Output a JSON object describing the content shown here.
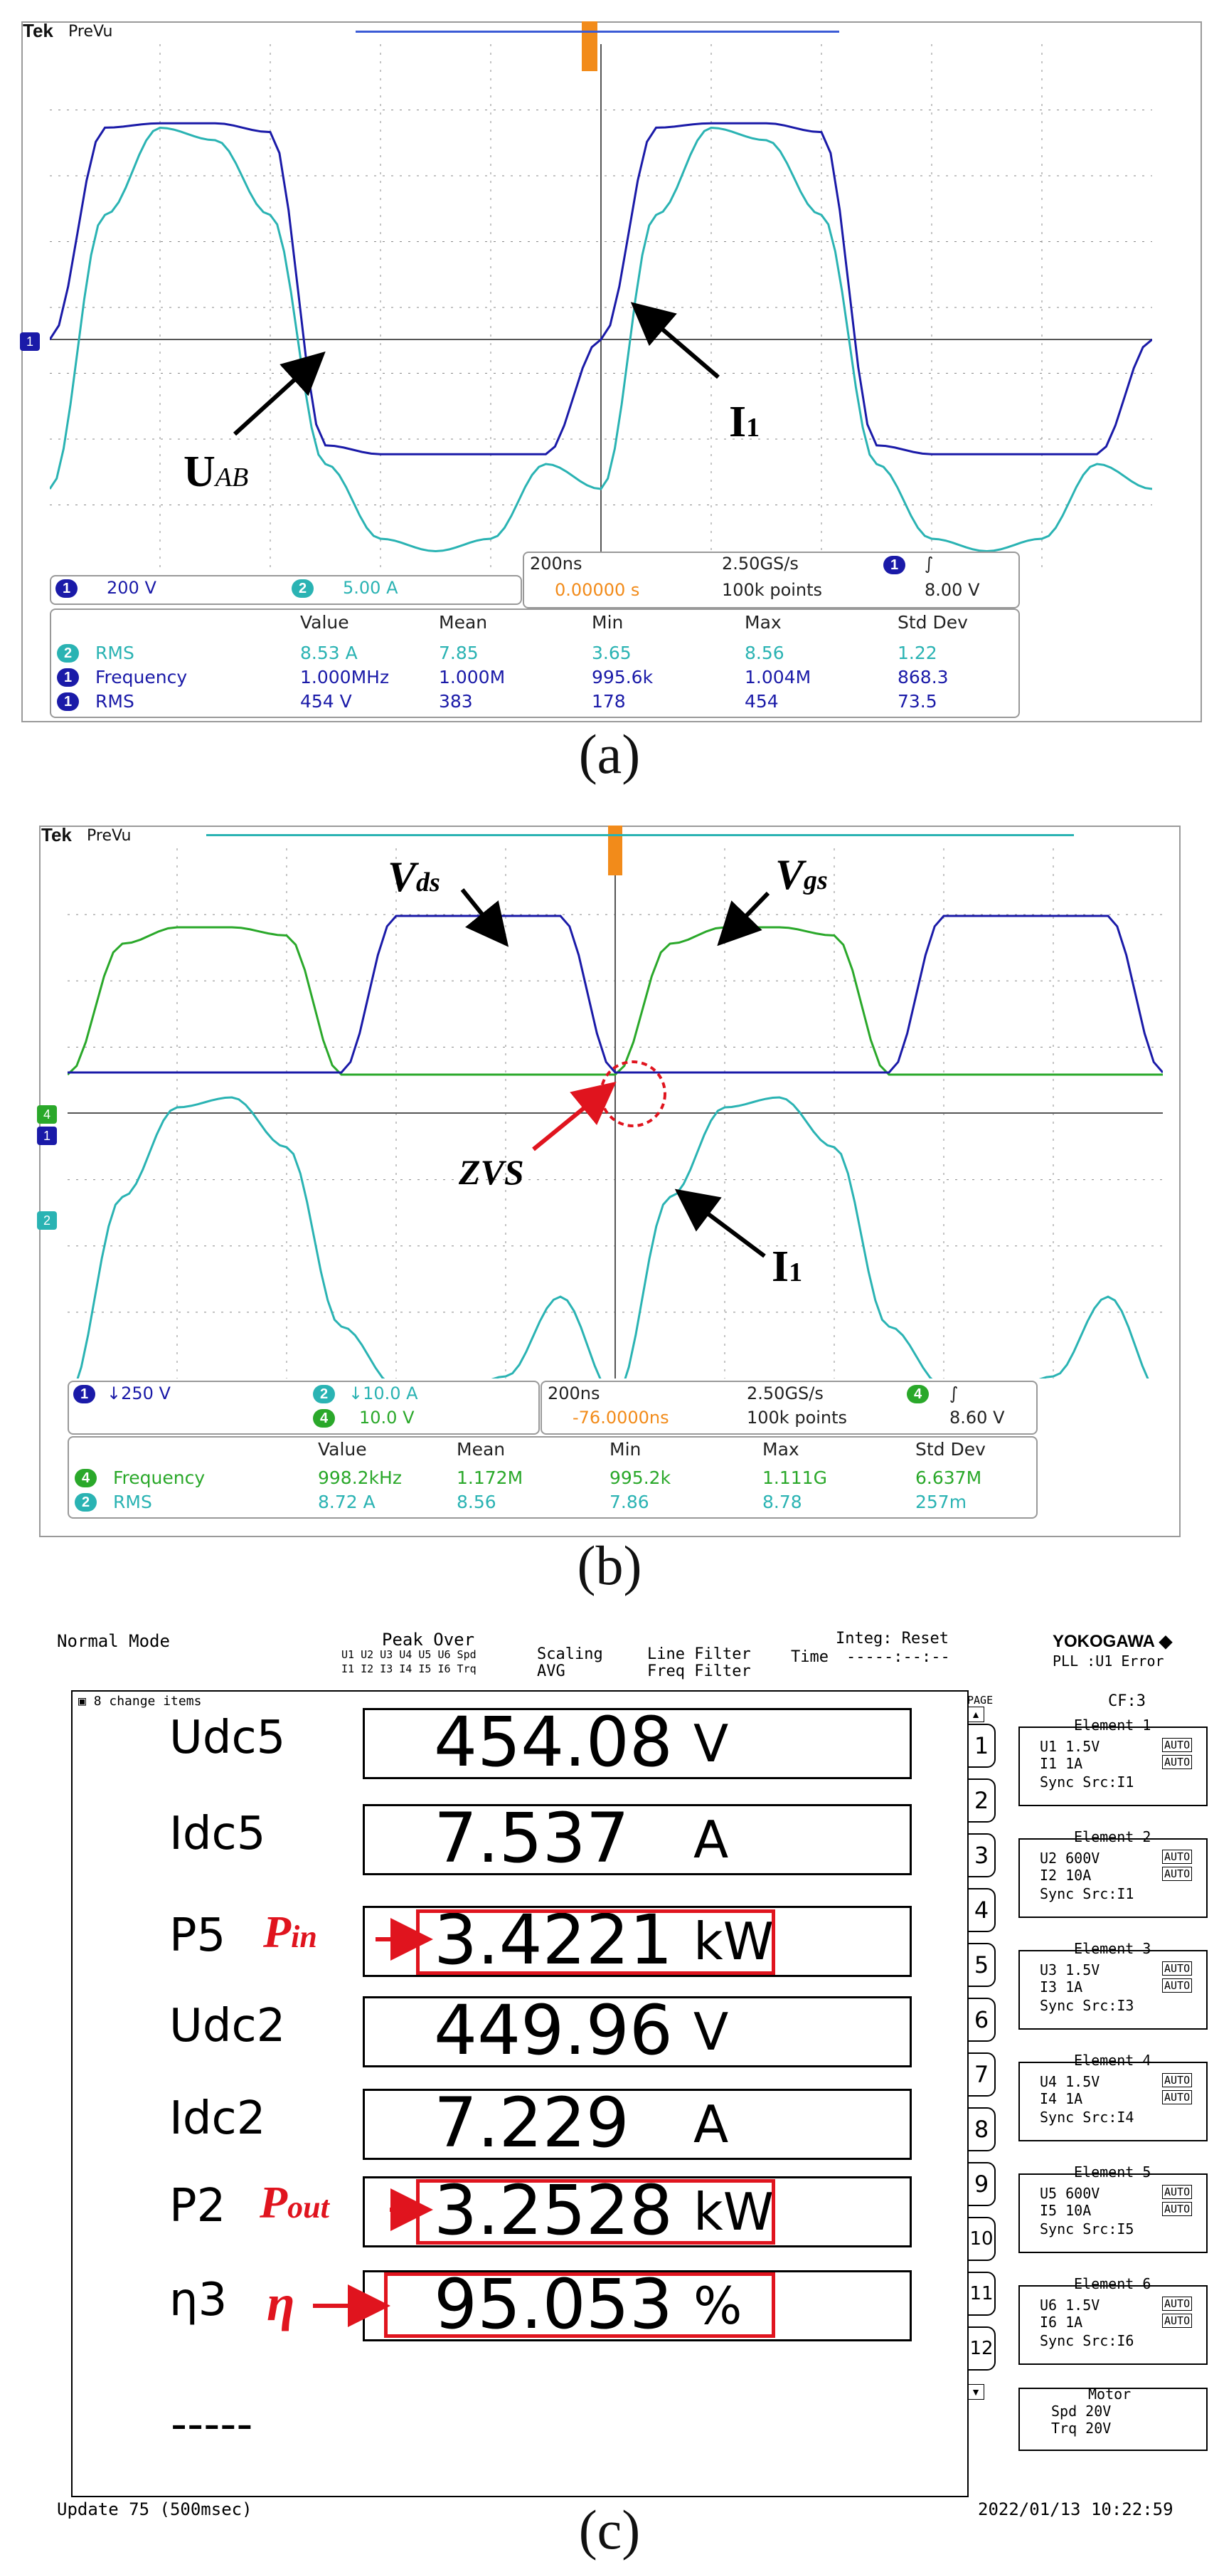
{
  "panel_a": {
    "brand": "Tek",
    "mode": "PreVu",
    "ch1_scale": "200 V",
    "ch2_scale": "5.00 A",
    "timebase": "200ns",
    "sample_rate": "2.50GS/s",
    "trigger_pos": "0.00000 s",
    "record": "100k points",
    "trigger_level": "8.00 V",
    "meas_headers": [
      "Value",
      "Mean",
      "Min",
      "Max",
      "Std Dev"
    ],
    "meas_rows": [
      {
        "ch": "2",
        "name": "RMS",
        "value": "8.53 A",
        "mean": "7.85",
        "min": "3.65",
        "max": "8.56",
        "std": "1.22"
      },
      {
        "ch": "1",
        "name": "Frequency",
        "value": "1.000MHz",
        "mean": "1.000M",
        "min": "995.6k",
        "max": "1.004M",
        "std": "868.3"
      },
      {
        "ch": "1",
        "name": "RMS",
        "value": "454 V",
        "mean": "383",
        "min": "178",
        "max": "454",
        "std": "73.5"
      }
    ],
    "label_uab_main": "U",
    "label_uab_sub": "AB",
    "label_i1_main": "I",
    "label_i1_sub": "1",
    "caption": "(a)"
  },
  "panel_b": {
    "brand": "Tek",
    "mode": "PreVu",
    "ch1_scale": "250 V",
    "ch2_scale": "10.0 A",
    "ch4_scale": "10.0 V",
    "timebase": "200ns",
    "sample_rate": "2.50GS/s",
    "trigger_pos": "-76.0000ns",
    "record": "100k points",
    "trigger_level": "8.60 V",
    "meas_headers": [
      "Value",
      "Mean",
      "Min",
      "Max",
      "Std Dev"
    ],
    "meas_rows": [
      {
        "ch": "4",
        "name": "Frequency",
        "value": "998.2kHz",
        "mean": "1.172M",
        "min": "995.2k",
        "max": "1.111G",
        "std": "6.637M"
      },
      {
        "ch": "2",
        "name": "RMS",
        "value": "8.72 A",
        "mean": "8.56",
        "min": "7.86",
        "max": "8.78",
        "std": "257m"
      }
    ],
    "label_vds_main": "V",
    "label_vds_sub": "ds",
    "label_vgs_main": "V",
    "label_vgs_sub": "gs",
    "label_zvs": "ZVS",
    "label_i1_main": "I",
    "label_i1_sub": "1",
    "caption": "(b)"
  },
  "panel_c": {
    "mode": "Normal Mode",
    "peak_over": "Peak Over",
    "peak_row1": "U1 U2 U3 U4 U5 U6 Spd",
    "peak_row2": "I1 I2 I3 I4 I5 I6 Trq",
    "scaling": "Scaling",
    "avg": "AVG",
    "line_filter": "Line Filter",
    "freq_filter": "Freq Filter",
    "integ": "Integ: Reset",
    "time_label": "Time",
    "time_value": "-----:--:--",
    "brand": "YOKOGAWA",
    "pll": "PLL :U1  Error",
    "items_header": "8 change items",
    "cf": "CF:3",
    "page_label": "PAGE",
    "rows": [
      {
        "label": "Udc5",
        "value": "454.08",
        "unit": "V"
      },
      {
        "label": "Idc5",
        "value": "7.537",
        "unit": "A"
      },
      {
        "label": "P5",
        "value": "3.4221",
        "unit": "kW"
      },
      {
        "label": "Udc2",
        "value": "449.96",
        "unit": "V"
      },
      {
        "label": "Idc2",
        "value": "7.229",
        "unit": "A"
      },
      {
        "label": "P2",
        "value": "3.2528",
        "unit": "kW"
      },
      {
        "label": "η3",
        "value": "95.053",
        "unit": "%"
      }
    ],
    "dashes": "-----",
    "pin_main": "P",
    "pin_sub": "in",
    "pout_main": "P",
    "pout_sub": "out",
    "eta": "η",
    "pages": [
      "1",
      "2",
      "3",
      "4",
      "5",
      "6",
      "7",
      "8",
      "9",
      "10",
      "11",
      "12"
    ],
    "elements": [
      {
        "title": "Element 1",
        "u": "U1    1.5V",
        "i": "I1      1A",
        "sync": "Sync Src:I1"
      },
      {
        "title": "Element 2",
        "u": "U2    600V",
        "i": "I2     10A",
        "sync": "Sync Src:I1"
      },
      {
        "title": "Element 3",
        "u": "U3    1.5V",
        "i": "I3      1A",
        "sync": "Sync Src:I3"
      },
      {
        "title": "Element 4",
        "u": "U4    1.5V",
        "i": "I4      1A",
        "sync": "Sync Src:I4"
      },
      {
        "title": "Element 5",
        "u": "U5    600V",
        "i": "I5     10A",
        "sync": "Sync Src:I5"
      },
      {
        "title": "Element 6",
        "u": "U6    1.5V",
        "i": "I6      1A",
        "sync": "Sync Src:I6"
      }
    ],
    "auto": "AUTO",
    "motor_title": "Motor",
    "motor_spd": "Spd    20V",
    "motor_trq": "Trq    20V",
    "update": "Update    75 (500msec)",
    "datetime": "2022/01/13 10:22:59",
    "caption": "(c)"
  },
  "colors": {
    "ch1": "#1a1aa8",
    "ch2": "#2ab3b3",
    "ch4": "#2aa82a",
    "annotation_red": "#e0141e"
  },
  "chart_data": [
    {
      "type": "line",
      "title": "",
      "x_unit": "ns",
      "x": [
        0,
        100,
        200,
        300,
        400,
        500,
        600,
        700,
        800,
        900,
        1000,
        1100,
        1200,
        1300,
        1400,
        1500,
        1600,
        1700,
        1800,
        1900,
        2000
      ],
      "series": [
        {
          "name": "UAB",
          "channel": 1,
          "unit": "V",
          "values": [
            0,
            480,
            490,
            490,
            470,
            -240,
            -260,
            -260,
            -260,
            -260,
            0,
            480,
            490,
            490,
            470,
            -240,
            -260,
            -260,
            -260,
            -260,
            0
          ]
        },
        {
          "name": "I1",
          "channel": 2,
          "unit": "A",
          "values": [
            -12,
            10,
            17,
            16,
            10,
            -10,
            -16,
            -17,
            -16,
            -10,
            -12,
            10,
            17,
            16,
            10,
            -10,
            -16,
            -17,
            -16,
            -10,
            -12
          ]
        }
      ]
    },
    {
      "type": "line",
      "title": "",
      "x_unit": "ns",
      "x": [
        0,
        100,
        200,
        300,
        400,
        500,
        600,
        700,
        800,
        900,
        1000,
        1100,
        1200,
        1300,
        1400,
        1500,
        1600,
        1700,
        1800,
        1900,
        2000
      ],
      "series": [
        {
          "name": "Vds",
          "channel": 1,
          "unit": "V",
          "values": [
            0,
            0,
            0,
            0,
            0,
            0,
            500,
            500,
            500,
            500,
            0,
            0,
            0,
            0,
            0,
            0,
            500,
            500,
            500,
            500,
            0
          ]
        },
        {
          "name": "Vgs",
          "channel": 4,
          "unit": "V",
          "values": [
            0,
            16,
            18,
            18,
            17,
            0,
            0,
            0,
            0,
            0,
            0,
            16,
            18,
            18,
            17,
            0,
            0,
            0,
            0,
            0,
            0
          ]
        },
        {
          "name": "I1",
          "channel": 2,
          "unit": "A",
          "values": [
            -15,
            5,
            14,
            15,
            10,
            -8,
            -14,
            -15,
            -13,
            -5,
            -15,
            5,
            14,
            15,
            10,
            -8,
            -14,
            -15,
            -13,
            -5,
            -15
          ]
        }
      ]
    }
  ]
}
